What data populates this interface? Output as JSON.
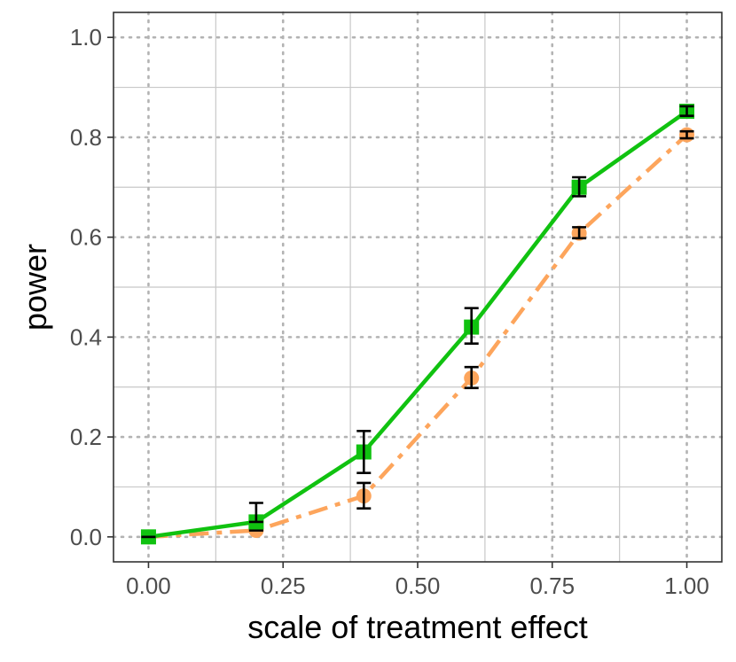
{
  "chart_data": {
    "type": "line",
    "title": "",
    "xlabel": "scale of treatment effect",
    "ylabel": "power",
    "xlim": [
      -0.065,
      1.065
    ],
    "ylim": [
      -0.05,
      1.05
    ],
    "x_ticks": [
      0.0,
      0.25,
      0.5,
      0.75,
      1.0
    ],
    "x_tick_labels": [
      "0.00",
      "0.25",
      "0.50",
      "0.75",
      "1.00"
    ],
    "y_ticks": [
      0.0,
      0.2,
      0.4,
      0.6,
      0.8,
      1.0
    ],
    "y_tick_labels": [
      "0.0",
      "0.2",
      "0.4",
      "0.6",
      "0.8",
      "1.0"
    ],
    "grid": true,
    "legend": "none",
    "series": [
      {
        "name": "orange-dashed",
        "color": "#FDA55C",
        "marker": "circle",
        "line_style": "dashed",
        "x": [
          0.0,
          0.2,
          0.4,
          0.6,
          0.8,
          1.0
        ],
        "y": [
          0.0,
          0.013,
          0.082,
          0.318,
          0.608,
          0.805
        ],
        "err_low": [
          0.0,
          0.013,
          0.057,
          0.298,
          0.598,
          0.798
        ],
        "err_high": [
          0.0,
          0.013,
          0.108,
          0.34,
          0.62,
          0.812
        ]
      },
      {
        "name": "green-solid",
        "color": "#10C210",
        "marker": "square",
        "line_style": "solid",
        "x": [
          0.0,
          0.2,
          0.4,
          0.6,
          0.8,
          1.0
        ],
        "y": [
          0.0,
          0.03,
          0.17,
          0.42,
          0.7,
          0.852
        ],
        "err_low": [
          0.0,
          0.03,
          0.128,
          0.387,
          0.682,
          0.843
        ],
        "err_high": [
          0.0,
          0.068,
          0.212,
          0.458,
          0.72,
          0.862
        ]
      }
    ]
  }
}
